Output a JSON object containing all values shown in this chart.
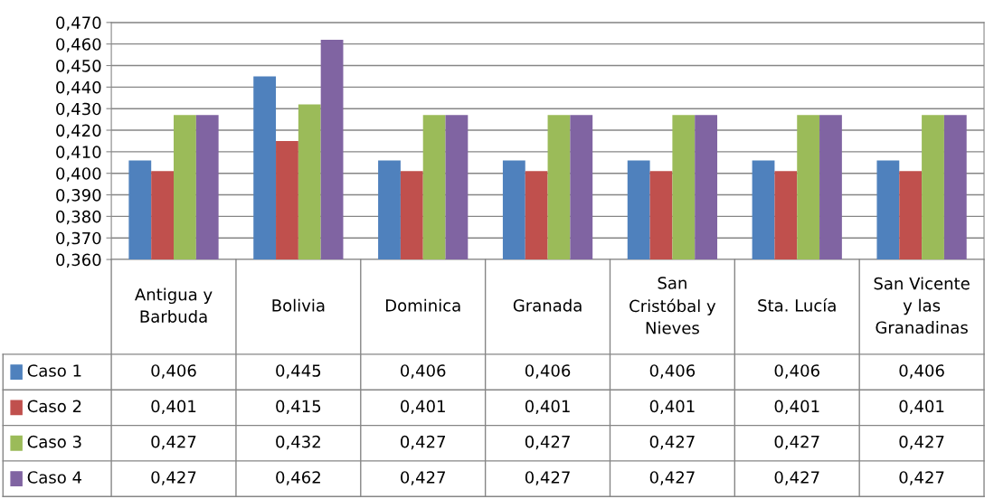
{
  "chart_data": {
    "type": "bar",
    "categories": [
      "Antigua y Barbuda",
      "Bolivia",
      "Dominica",
      "Granada",
      "San Cristóbal y Nieves",
      "Sta. Lucía",
      "San Vicente y las Granadinas"
    ],
    "series": [
      {
        "name": "Caso 1",
        "color": "#4f81bd",
        "values": [
          0.406,
          0.445,
          0.406,
          0.406,
          0.406,
          0.406,
          0.406
        ],
        "value_labels": [
          "0,406",
          "0,445",
          "0,406",
          "0,406",
          "0,406",
          "0,406",
          "0,406"
        ]
      },
      {
        "name": "Caso 2",
        "color": "#c0504d",
        "values": [
          0.401,
          0.415,
          0.401,
          0.401,
          0.401,
          0.401,
          0.401
        ],
        "value_labels": [
          "0,401",
          "0,415",
          "0,401",
          "0,401",
          "0,401",
          "0,401",
          "0,401"
        ]
      },
      {
        "name": "Caso 3",
        "color": "#9bbb59",
        "values": [
          0.427,
          0.432,
          0.427,
          0.427,
          0.427,
          0.427,
          0.427
        ],
        "value_labels": [
          "0,427",
          "0,432",
          "0,427",
          "0,427",
          "0,427",
          "0,427",
          "0,427"
        ]
      },
      {
        "name": "Caso 4",
        "color": "#8064a2",
        "values": [
          0.427,
          0.462,
          0.427,
          0.427,
          0.427,
          0.427,
          0.427
        ],
        "value_labels": [
          "0,427",
          "0,462",
          "0,427",
          "0,427",
          "0,427",
          "0,427",
          "0,427"
        ]
      }
    ],
    "ylim": [
      0.36,
      0.47
    ],
    "yticks": [
      {
        "value": 0.36,
        "label": "0,360"
      },
      {
        "value": 0.37,
        "label": "0,370"
      },
      {
        "value": 0.38,
        "label": "0,380"
      },
      {
        "value": 0.39,
        "label": "0,390"
      },
      {
        "value": 0.4,
        "label": "0,400"
      },
      {
        "value": 0.41,
        "label": "0,410"
      },
      {
        "value": 0.42,
        "label": "0,420"
      },
      {
        "value": 0.43,
        "label": "0,430"
      },
      {
        "value": 0.44,
        "label": "0,440"
      },
      {
        "value": 0.45,
        "label": "0,450"
      },
      {
        "value": 0.46,
        "label": "0,460"
      },
      {
        "value": 0.47,
        "label": "0,470"
      }
    ],
    "grid": "y",
    "legend": "bottom"
  }
}
